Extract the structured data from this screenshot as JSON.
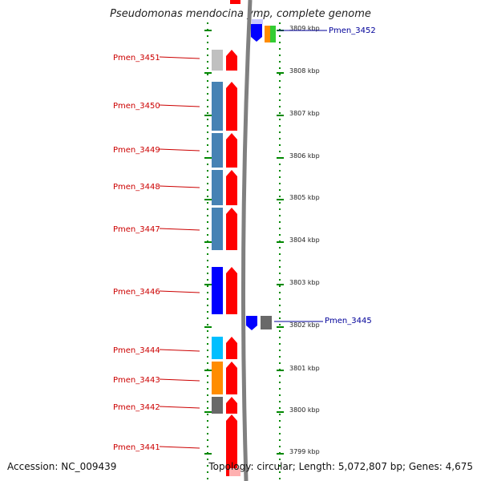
{
  "title": "Pseudomonas mendocina ymp, complete genome",
  "footer": {
    "accession": "Accession: NC_009439",
    "topology": "Topology: circular; Length: 5,072,807 bp; Genes: 4,675"
  },
  "colors": {
    "forward_label": "#cc0000",
    "reverse_label": "#000099",
    "cds_red": "#ff0000",
    "ruler_green": "#008800",
    "backbone": "#808080"
  },
  "kbp_ticks": [
    {
      "label": "3809 kbp"
    },
    {
      "label": "3808 kbp"
    },
    {
      "label": "3807 kbp"
    },
    {
      "label": "3806 kbp"
    },
    {
      "label": "3805 kbp"
    },
    {
      "label": "3804 kbp"
    },
    {
      "label": "3803 kbp"
    },
    {
      "label": "3802 kbp"
    },
    {
      "label": "3801 kbp"
    },
    {
      "label": "3800 kbp"
    },
    {
      "label": "3799 kbp"
    }
  ],
  "left_genes": [
    {
      "label": "Pmen_3451",
      "color": "#c0c0c0"
    },
    {
      "label": "Pmen_3450",
      "color": "#4682b4"
    },
    {
      "label": "Pmen_3449",
      "color": "#4682b4"
    },
    {
      "label": "Pmen_3448",
      "color": "#4682b4"
    },
    {
      "label": "Pmen_3447",
      "color": "#4682b4"
    },
    {
      "label": "Pmen_3446",
      "color": "#0000ff"
    },
    {
      "label": "Pmen_3444",
      "color": "#00bfff"
    },
    {
      "label": "Pmen_3443",
      "color": "#ff8c00"
    },
    {
      "label": "Pmen_3442",
      "color": "#696969"
    },
    {
      "label": "Pmen_3441",
      "color": "#ff0000"
    }
  ],
  "right_genes": [
    {
      "label": "Pmen_3452"
    },
    {
      "label": "Pmen_3445"
    }
  ]
}
